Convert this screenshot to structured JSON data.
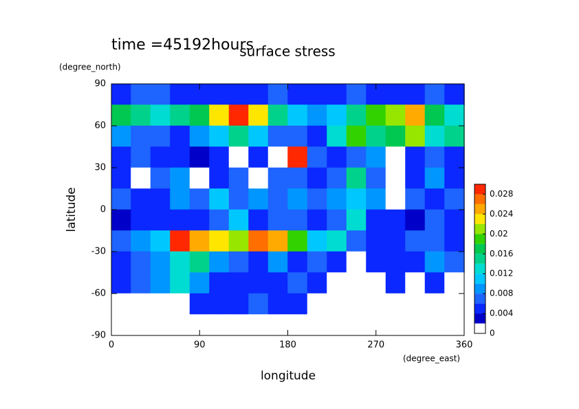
{
  "chart_data": {
    "type": "contour",
    "title": "time =45192hours",
    "subtitle": "surface stress",
    "y_unit": "(degree_north)",
    "x_unit": "(degree_east)",
    "ylabel": "latitude",
    "xlabel": "longitude",
    "xlim": [
      0,
      360
    ],
    "ylim": [
      -90,
      90
    ],
    "xticks": [
      0,
      90,
      180,
      270,
      360
    ],
    "yticks": [
      -90,
      -60,
      -30,
      0,
      30,
      60,
      90
    ],
    "lon": [
      10,
      30,
      50,
      70,
      90,
      110,
      130,
      150,
      170,
      190,
      210,
      230,
      250,
      270,
      290,
      310,
      330,
      350
    ],
    "lat": [
      82.5,
      67.5,
      52.5,
      37.5,
      22.5,
      7.5,
      -7.5,
      -22.5,
      -37.5,
      -52.5,
      -67.5,
      -82.5
    ],
    "z": [
      [
        0.004,
        0.006,
        0.006,
        0.004,
        0.004,
        0.004,
        0.004,
        0.004,
        0.006,
        0.004,
        0.004,
        0.004,
        0.006,
        0.004,
        0.004,
        0.004,
        0.006,
        0.004
      ],
      [
        0.016,
        0.014,
        0.012,
        0.014,
        0.016,
        0.022,
        0.03,
        0.022,
        0.014,
        0.01,
        0.008,
        0.01,
        0.014,
        0.018,
        0.02,
        0.024,
        0.016,
        0.012
      ],
      [
        0.008,
        0.006,
        0.006,
        0.004,
        0.008,
        0.01,
        0.014,
        0.01,
        0.006,
        0.006,
        0.004,
        0.012,
        0.018,
        0.014,
        0.016,
        0.02,
        0.012,
        0.014
      ],
      [
        0.004,
        0.006,
        0.004,
        0.004,
        0.002,
        0.004,
        0,
        0.004,
        0.001,
        0.03,
        0.006,
        0.004,
        0.006,
        0.008,
        0.001,
        0.004,
        0.006,
        0.004
      ],
      [
        0.004,
        0.001,
        0.006,
        0.008,
        0.001,
        0.004,
        0.006,
        0.001,
        0.006,
        0.006,
        0.004,
        0.006,
        0.014,
        0.006,
        0.001,
        0.004,
        0.008,
        0.004
      ],
      [
        0.006,
        0.004,
        0.004,
        0.008,
        0.006,
        0.01,
        0.006,
        0.008,
        0.006,
        0.008,
        0.006,
        0.008,
        0.01,
        0.008,
        0.001,
        0.006,
        0.004,
        0.006
      ],
      [
        0.002,
        0.004,
        0.004,
        0.004,
        0.004,
        0.006,
        0.01,
        0.004,
        0.006,
        0.006,
        0.004,
        0.006,
        0.012,
        0.004,
        0.004,
        0.002,
        0.006,
        0.004
      ],
      [
        0.006,
        0.008,
        0.01,
        0.03,
        0.024,
        0.022,
        0.02,
        0.026,
        0.024,
        0.018,
        0.01,
        0.012,
        0.006,
        0.004,
        0.004,
        0.006,
        0.006,
        0.004
      ],
      [
        0.004,
        0.006,
        0.008,
        0.012,
        0.014,
        0.008,
        0.006,
        0.004,
        0.008,
        0.004,
        0.006,
        0.004,
        0.001,
        0.004,
        0.004,
        0.004,
        0.008,
        0.006
      ],
      [
        0.004,
        0.006,
        0.008,
        0.012,
        0.008,
        0.004,
        0.004,
        0.004,
        0.004,
        0.006,
        0.004,
        0.001,
        0.001,
        0.001,
        0.004,
        0.001,
        0.004,
        0.001
      ],
      [
        0.001,
        0.001,
        0.001,
        0.001,
        0.004,
        0.004,
        0.004,
        0.006,
        0.004,
        0.004,
        0.001,
        0.001,
        0.001,
        0.001,
        0.001,
        0.001,
        0.001,
        0.001
      ],
      [
        0,
        0,
        0,
        0,
        0,
        0,
        0,
        0,
        0,
        0,
        0,
        0,
        0,
        0,
        0,
        0,
        0,
        0
      ]
    ],
    "levels": [
      0,
      0.002,
      0.004,
      0.006,
      0.008,
      0.01,
      0.012,
      0.014,
      0.016,
      0.018,
      0.02,
      0.022,
      0.024,
      0.026,
      0.028,
      0.03
    ],
    "colors": [
      "#ffffff",
      "#0000c8",
      "#0a28ff",
      "#1e64ff",
      "#0096ff",
      "#00c8ff",
      "#00dcd2",
      "#00d28c",
      "#00c850",
      "#32d200",
      "#96e600",
      "#ffe600",
      "#ffaa00",
      "#ff6e00",
      "#ff2800"
    ],
    "cbticks": [
      0,
      0.004,
      0.008,
      0.012,
      0.016,
      0.02,
      0.024,
      0.028
    ]
  }
}
